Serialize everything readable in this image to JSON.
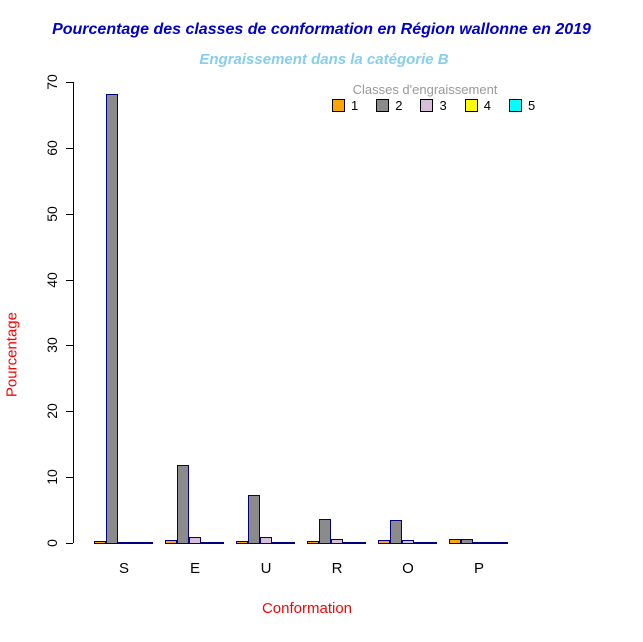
{
  "title": "Pourcentage des classes de conformation en Région wallonne en 2019",
  "subtitle": "Engraissement dans la catégorie B",
  "colors": {
    "title": "#0000CD",
    "subtitle": "#87CEEB",
    "axis_labels": "#FF0000",
    "legend_title": "#999999",
    "bar_border": "#000080",
    "axis": "#000000"
  },
  "chart_data": {
    "type": "bar",
    "grouped": true,
    "title": "Pourcentage des classes de conformation en Région wallonne en 2019",
    "subtitle": "Engraissement dans la catégorie B",
    "xlabel": "Conformation",
    "ylabel": "Pourcentage",
    "categories": [
      "S",
      "E",
      "U",
      "R",
      "O",
      "P"
    ],
    "legend_title": "Classes d'engraissement",
    "legend_position": "top-right",
    "grid": false,
    "ylim": [
      0,
      70
    ],
    "yticks": [
      0,
      10,
      20,
      30,
      40,
      50,
      60,
      70
    ],
    "series": [
      {
        "name": "1",
        "color": "#FFA500",
        "values": [
          0.3,
          0.5,
          0.3,
          0.3,
          0.5,
          0.6
        ]
      },
      {
        "name": "2",
        "color": "#8B8B8B",
        "values": [
          68.2,
          11.9,
          7.3,
          3.7,
          3.5,
          0.65
        ]
      },
      {
        "name": "3",
        "color": "#D8BFD8",
        "values": [
          0.2,
          0.9,
          0.9,
          0.55,
          0.45,
          0.15
        ]
      },
      {
        "name": "4",
        "color": "#FFFF00",
        "values": [
          0.05,
          0.12,
          0.1,
          0.07,
          0.05,
          0.02
        ]
      },
      {
        "name": "5",
        "color": "#00FFFF",
        "values": [
          0.02,
          0.03,
          0.02,
          0.02,
          0.01,
          0.01
        ]
      }
    ]
  }
}
